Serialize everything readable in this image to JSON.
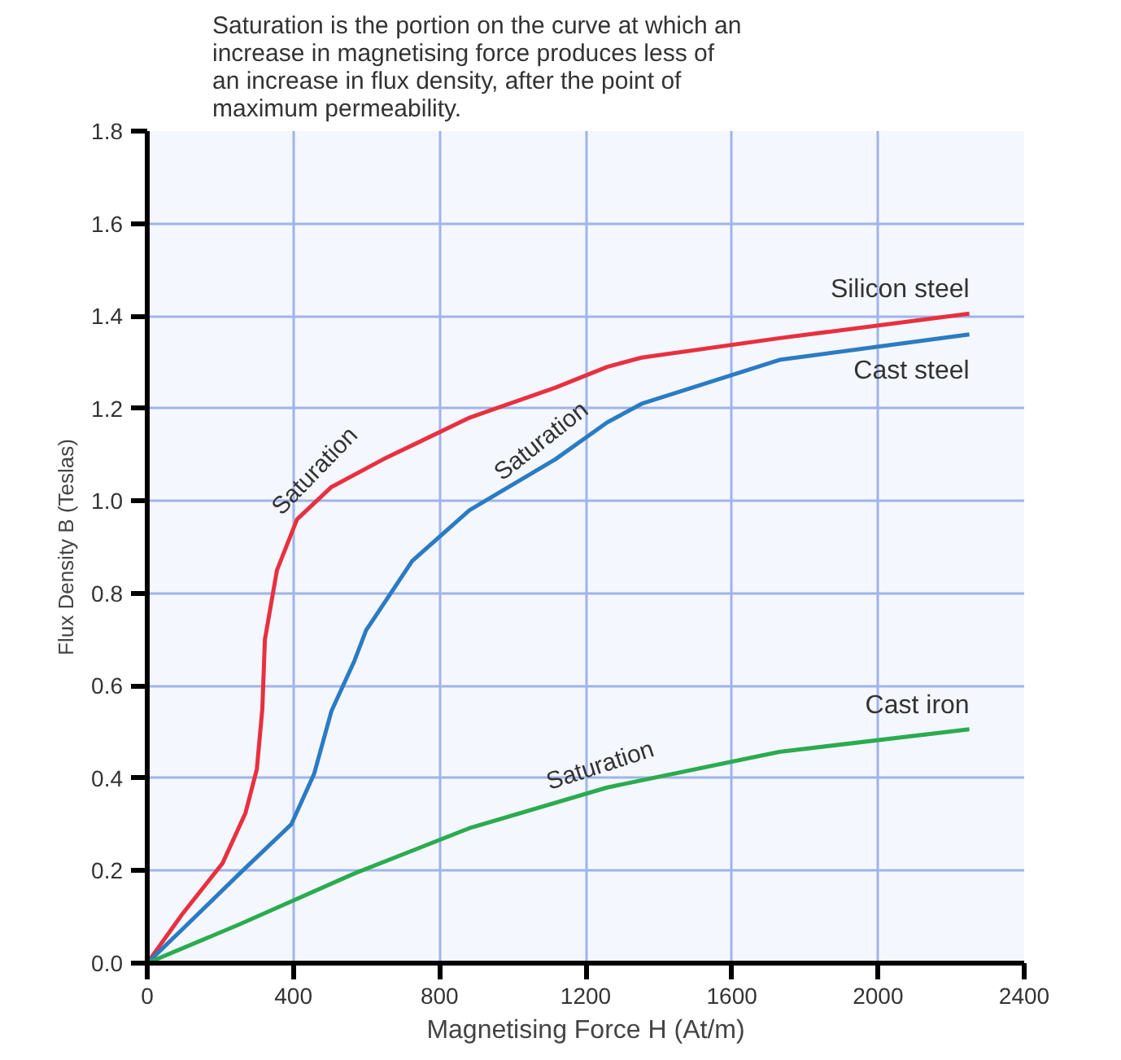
{
  "chart_data": {
    "type": "line",
    "xlabel": "Magnetising Force H (At/m)",
    "ylabel": "Flux Density B (Teslas)",
    "xlim": [
      0,
      2400
    ],
    "ylim": [
      0,
      1.8
    ],
    "xticks": [
      0,
      400,
      800,
      1200,
      1600,
      2000,
      2400
    ],
    "yticks": [
      {
        "value": 0,
        "label": "0.0"
      },
      {
        "value": 0.2,
        "label": "0.2"
      },
      {
        "value": 0.4,
        "label": "0.4"
      },
      {
        "value": 0.6,
        "label": "0.6"
      },
      {
        "value": 0.8,
        "label": "0.8"
      },
      {
        "value": 1.0,
        "label": "1.0"
      },
      {
        "value": 1.2,
        "label": "1.2"
      },
      {
        "value": 1.4,
        "label": "1.4"
      },
      {
        "value": 1.6,
        "label": "1.6"
      },
      {
        "value": 1.8,
        "label": "1.8"
      }
    ],
    "grid": true,
    "marker": "none",
    "line_style": "solid",
    "series": [
      {
        "name": "Silicon steel",
        "color": "#e8303f",
        "x": [
          0,
          96,
          206,
          269,
          300,
          315,
          322,
          355,
          410,
          504,
          646,
          882,
          1117,
          1259,
          1353,
          1730,
          2250
        ],
        "values": [
          0,
          0.106,
          0.216,
          0.325,
          0.42,
          0.55,
          0.7,
          0.85,
          0.96,
          1.03,
          1.09,
          1.18,
          1.245,
          1.29,
          1.31,
          1.352,
          1.405
        ]
      },
      {
        "name": "Cast steel",
        "color": "#2b7bc4",
        "x": [
          0,
          96,
          253,
          394,
          457,
          504,
          567,
          599,
          725,
          882,
          1117,
          1259,
          1353,
          1730,
          2250
        ],
        "values": [
          0,
          0.073,
          0.194,
          0.3,
          0.41,
          0.545,
          0.654,
          0.72,
          0.87,
          0.98,
          1.09,
          1.17,
          1.21,
          1.305,
          1.36
        ]
      },
      {
        "name": "Cast iron",
        "color": "#2bab4f",
        "x": [
          0,
          253,
          567,
          882,
          1259,
          1730,
          2250
        ],
        "values": [
          0,
          0.084,
          0.194,
          0.292,
          0.38,
          0.457,
          0.506
        ]
      }
    ],
    "annotations": [
      "Saturation is the portion on the curve at which an\nincrease in magnetising force produces less of\nan increase in flux density, after the point of\nmaximum permeability.",
      {
        "text": "Saturation",
        "x": 504,
        "y": 1.03
      },
      {
        "text": "Saturation",
        "x": 1117,
        "y": 1.09
      },
      {
        "text": "Saturation",
        "x": 1259,
        "y": 0.38
      }
    ]
  }
}
